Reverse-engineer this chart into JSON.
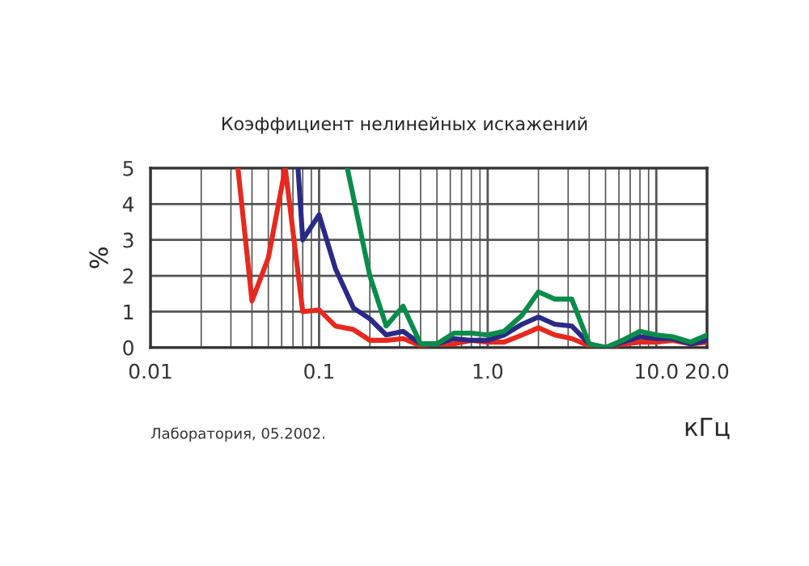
{
  "chart_data": {
    "type": "line",
    "title": "Коэффициент нелинейных искажений",
    "xlabel": "кГц",
    "ylabel": "%",
    "annotations": [
      "Лаборатория, 05.2002."
    ],
    "log": "x",
    "xlim": [
      0.01,
      20
    ],
    "xticks": [
      {
        "value": 0.01,
        "label": "0.01"
      },
      {
        "value": 0.1,
        "label": "0.1"
      },
      {
        "value": 1,
        "label": "1.0"
      },
      {
        "value": 10,
        "label": "10.0"
      },
      {
        "value": 20,
        "label": "20.0"
      }
    ],
    "ylim": [
      0,
      5
    ],
    "yticks": [
      0,
      1,
      2,
      3,
      4,
      5
    ],
    "grid": true,
    "series": [
      {
        "color": "#e8281e",
        "x": [
          0.033,
          0.04,
          0.05,
          0.063,
          0.08,
          0.1,
          0.125,
          0.16,
          0.2,
          0.25,
          0.315,
          0.4,
          0.5,
          0.63,
          0.8,
          1,
          1.25,
          1.6,
          2,
          2.5,
          3.15,
          4,
          5,
          6.3,
          8,
          10,
          12.5,
          16,
          20
        ],
        "values": [
          5,
          1.3,
          2.5,
          5,
          1.0,
          1.05,
          0.6,
          0.5,
          0.2,
          0.2,
          0.25,
          0.05,
          0.1,
          0.1,
          0.2,
          0.15,
          0.15,
          0.35,
          0.55,
          0.35,
          0.25,
          0.05,
          0,
          0.1,
          0.15,
          0.15,
          0.2,
          0.1,
          0.15
        ]
      },
      {
        "color": "#2a2a86",
        "x": [
          0.075,
          0.08,
          0.1,
          0.125,
          0.16,
          0.2,
          0.25,
          0.315,
          0.4,
          0.5,
          0.63,
          0.8,
          1,
          1.25,
          1.6,
          2,
          2.5,
          3.15,
          4,
          5,
          6.3,
          8,
          10,
          12.5,
          16,
          20
        ],
        "values": [
          5,
          3.0,
          3.7,
          2.2,
          1.1,
          0.8,
          0.35,
          0.45,
          0.1,
          0.1,
          0.25,
          0.2,
          0.2,
          0.35,
          0.65,
          0.85,
          0.65,
          0.6,
          0.1,
          0,
          0.15,
          0.3,
          0.25,
          0.25,
          0.1,
          0.2
        ]
      },
      {
        "color": "#0a8c4a",
        "x": [
          0.147,
          0.2,
          0.25,
          0.315,
          0.4,
          0.5,
          0.63,
          0.8,
          1,
          1.25,
          1.6,
          2,
          2.5,
          3.15,
          4,
          5,
          6.3,
          8,
          10,
          12.5,
          16,
          20
        ],
        "values": [
          5,
          2.0,
          0.6,
          1.15,
          0.1,
          0.1,
          0.4,
          0.4,
          0.35,
          0.45,
          0.9,
          1.55,
          1.35,
          1.35,
          0.1,
          0,
          0.2,
          0.45,
          0.35,
          0.3,
          0.15,
          0.35
        ]
      }
    ]
  }
}
